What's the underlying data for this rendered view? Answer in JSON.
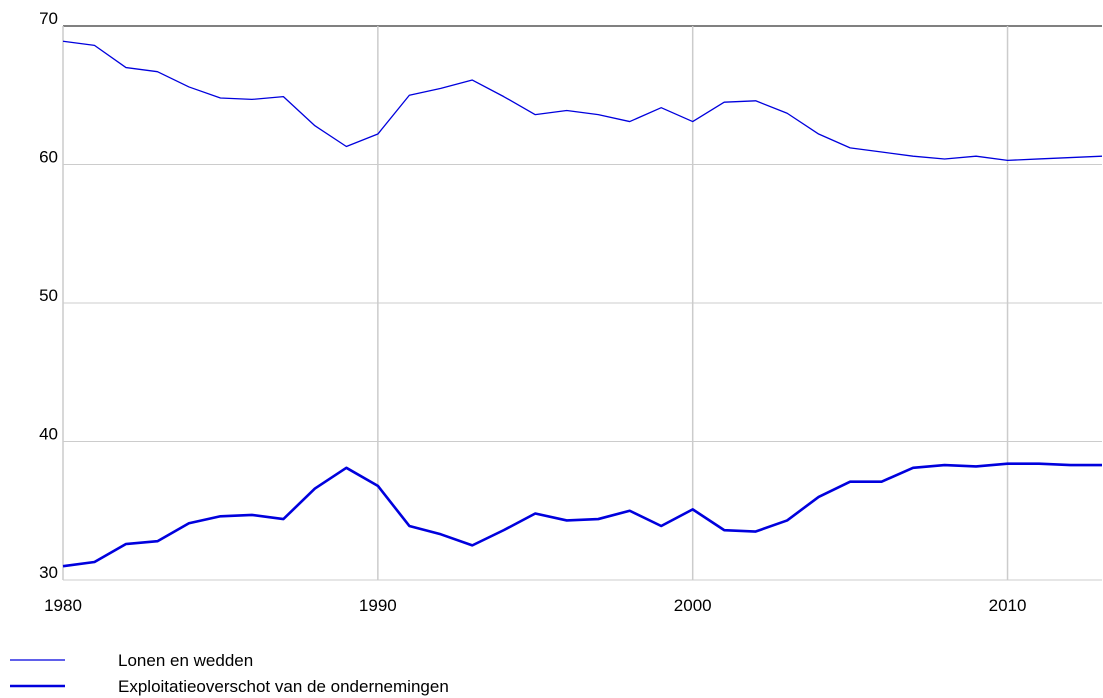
{
  "chart_data": {
    "type": "line",
    "x": [
      1980,
      1981,
      1982,
      1983,
      1984,
      1985,
      1986,
      1987,
      1988,
      1989,
      1990,
      1991,
      1992,
      1993,
      1994,
      1995,
      1996,
      1997,
      1998,
      1999,
      2000,
      2001,
      2002,
      2003,
      2004,
      2005,
      2006,
      2007,
      2008,
      2009,
      2010,
      2011,
      2012,
      2013
    ],
    "series": [
      {
        "name": "Lonen en wedden",
        "color": "#0000dd",
        "values": [
          68.9,
          68.6,
          67.0,
          66.7,
          65.6,
          64.8,
          64.7,
          64.9,
          62.8,
          61.3,
          62.2,
          65.0,
          65.5,
          66.1,
          64.9,
          63.6,
          63.9,
          63.6,
          63.1,
          64.1,
          63.1,
          64.5,
          64.6,
          63.7,
          62.2,
          61.2,
          60.9,
          60.6,
          60.4,
          60.6,
          60.3,
          60.4,
          60.5,
          60.6
        ]
      },
      {
        "name": "Exploitatieoverschot van de ondernemingen",
        "color": "#0000dd",
        "values": [
          31.0,
          31.3,
          32.6,
          32.8,
          34.1,
          34.6,
          34.7,
          34.4,
          36.6,
          38.1,
          36.8,
          33.9,
          33.3,
          32.5,
          33.6,
          34.8,
          34.3,
          34.4,
          35.0,
          33.9,
          35.1,
          33.6,
          33.5,
          34.3,
          36.0,
          37.1,
          37.1,
          38.1,
          38.3,
          38.2,
          38.4,
          38.4,
          38.3,
          38.3
        ]
      }
    ],
    "xlim": [
      1980,
      2013
    ],
    "xticks": [
      1980,
      1990,
      2000,
      2010
    ],
    "ylim": [
      30,
      70
    ],
    "yticks": [
      30,
      40,
      50,
      60,
      70
    ],
    "grid": true,
    "legend": "bottom-left"
  }
}
